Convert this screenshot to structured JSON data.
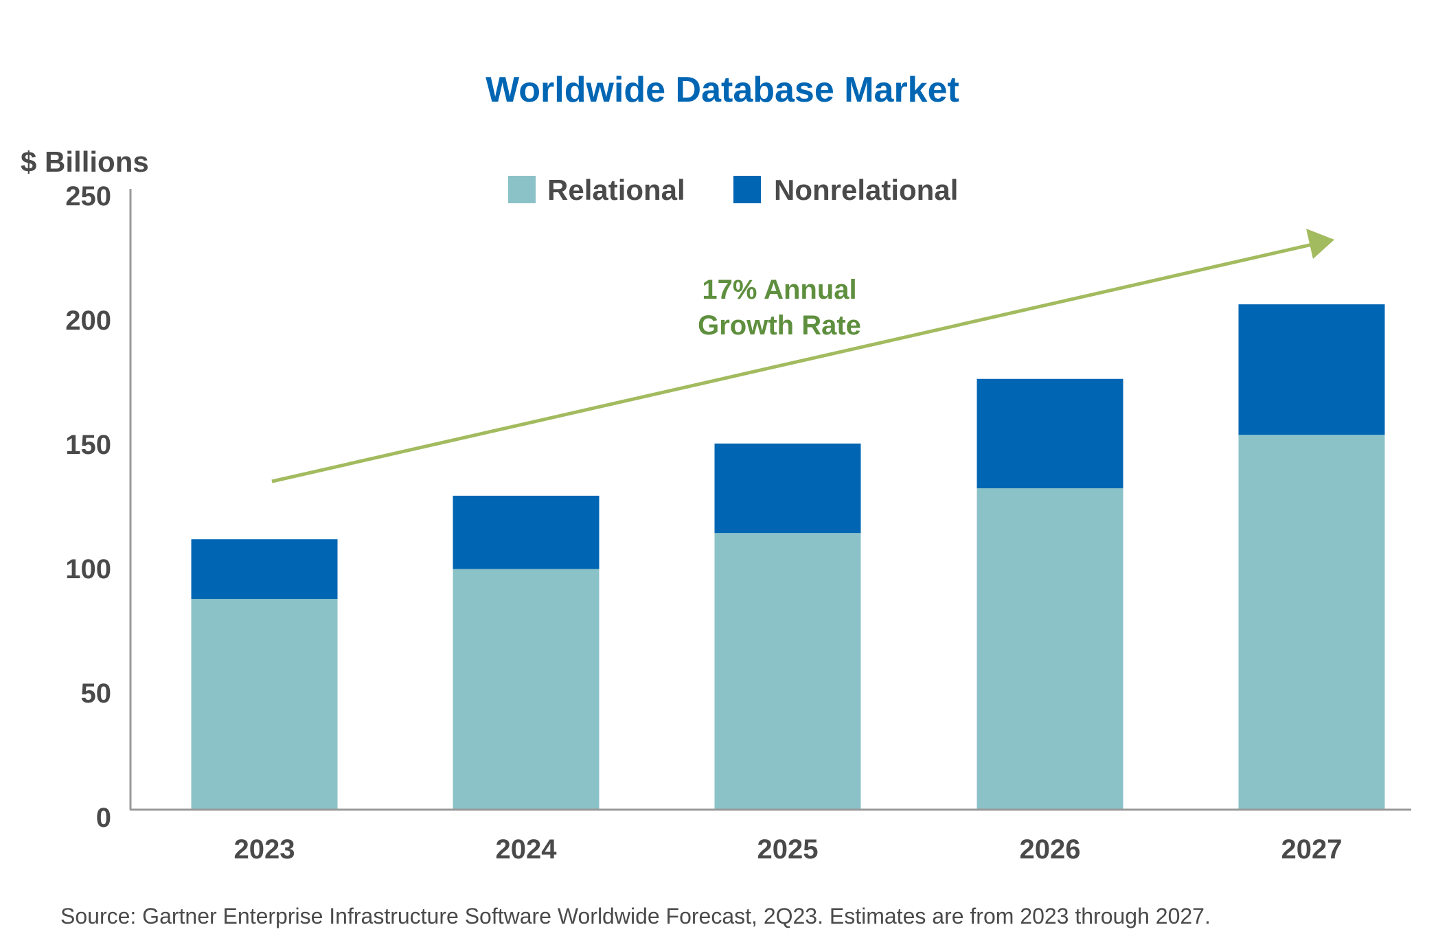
{
  "chart_data": {
    "type": "bar",
    "stacked": true,
    "title": "Worldwide Database Market",
    "ylabel": "$ Billions",
    "xlabel": "",
    "ylim": [
      0,
      250
    ],
    "yticks": [
      "0",
      "50",
      "100",
      "150",
      "200",
      "250"
    ],
    "categories": [
      "2023",
      "2024",
      "2025",
      "2026",
      "2027"
    ],
    "series": [
      {
        "name": "Relational",
        "color": "#8bc2c7",
        "values": [
          84.5,
          96.5,
          111,
          129,
          150.5
        ]
      },
      {
        "name": "Nonrelational",
        "color": "#0066b3",
        "values": [
          24,
          29.5,
          36,
          44,
          52.5
        ]
      }
    ],
    "legend": "top-center",
    "grid": false,
    "annotation": {
      "line1": "17% Annual",
      "line2": "Growth Rate",
      "color": "#a3bb5f"
    },
    "source": "Source: Gartner Enterprise Infrastructure Software Worldwide Forecast, 2Q23. Estimates are from 2023 through 2027."
  }
}
